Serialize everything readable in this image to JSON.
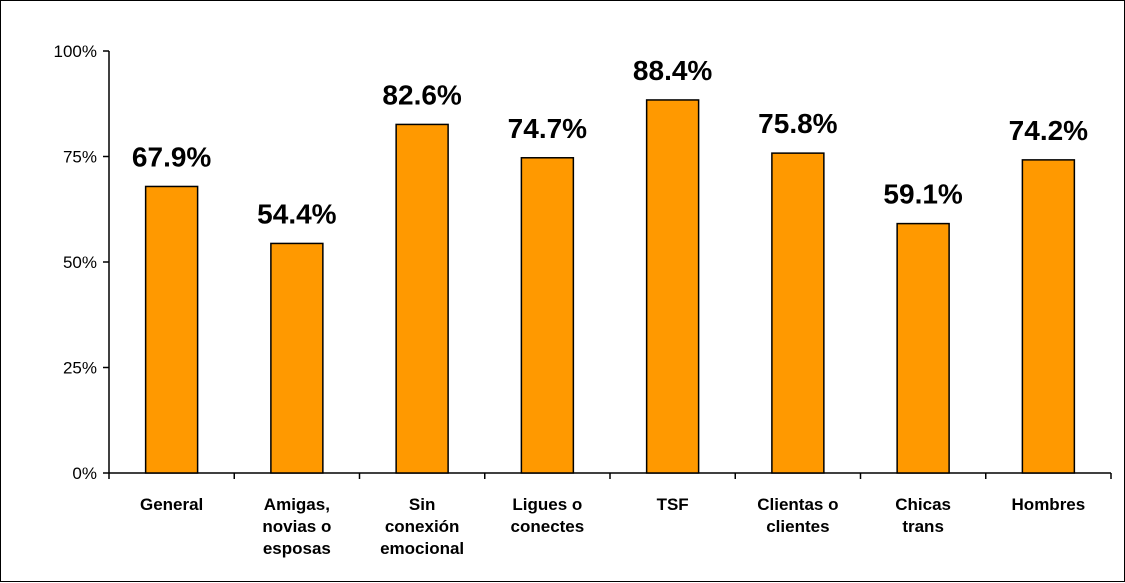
{
  "chart_data": {
    "type": "bar",
    "categories": [
      [
        "General"
      ],
      [
        "Amigas,",
        "novias o",
        "esposas"
      ],
      [
        "Sin",
        "conexión",
        "emocional"
      ],
      [
        "Ligues o",
        "conectes"
      ],
      [
        "TSF"
      ],
      [
        "Clientas o",
        "clientes"
      ],
      [
        "Chicas",
        "trans"
      ],
      [
        "Hombres"
      ]
    ],
    "values": [
      67.9,
      54.4,
      82.6,
      74.7,
      88.4,
      75.8,
      59.1,
      74.2
    ],
    "data_labels": [
      "67.9%",
      "54.4%",
      "82.6%",
      "74.7%",
      "88.4%",
      "75.8%",
      "59.1%",
      "74.2%"
    ],
    "yticks": [
      "0%",
      "25%",
      "50%",
      "75%",
      "100%"
    ],
    "ylim": [
      0,
      100
    ],
    "grid": false,
    "legend": "none",
    "bar_color": "#FF9900",
    "bar_stroke": "#000000"
  }
}
